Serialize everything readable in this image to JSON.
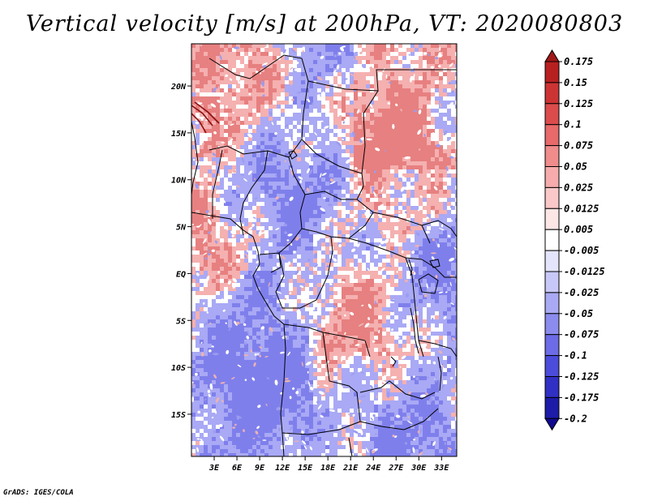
{
  "title": "Vertical velocity [m/s] at 200hPa, VT: 2020080803",
  "credit": "GrADS: IGES/COLA",
  "map": {
    "lat_labels": [
      "20N",
      "15N",
      "10N",
      "5N",
      "EQ",
      "5S",
      "10S",
      "15S"
    ],
    "lon_labels": [
      "3E",
      "6E",
      "9E",
      "12E",
      "15E",
      "18E",
      "21E",
      "24E",
      "27E",
      "30E",
      "33E"
    ],
    "lon_range": [
      0,
      35
    ],
    "lat_range": [
      -19.5,
      24.5
    ],
    "lat_ticks": [
      20,
      15,
      10,
      5,
      0,
      -5,
      -10,
      -15
    ],
    "lon_ticks": [
      3,
      6,
      9,
      12,
      15,
      18,
      21,
      24,
      27,
      30,
      33
    ]
  },
  "colorbar": {
    "levels": [
      "0.175",
      "0.15",
      "0.125",
      "0.1",
      "0.075",
      "0.05",
      "0.025",
      "0.0125",
      "0.005",
      "-0.005",
      "-0.0125",
      "-0.025",
      "-0.05",
      "-0.075",
      "-0.1",
      "-0.125",
      "-0.175",
      "-0.2"
    ],
    "colors": [
      "#a01818",
      "#b82020",
      "#cc3434",
      "#dc4c4c",
      "#e86a6a",
      "#f08c8c",
      "#f6acac",
      "#fac8c8",
      "#fde6e6",
      "#ffffff",
      "#e4e4fc",
      "#c8c8f8",
      "#aaaaf4",
      "#8c8cee",
      "#6c6ce6",
      "#4c4cdc",
      "#3030c4",
      "#1c1ca8",
      "#100a90"
    ]
  },
  "palette": {
    "field_blue": "#a9a9f5",
    "field_blue_dark": "#7f7fec",
    "field_red": "#f5b0b0",
    "field_red_dark": "#e78080",
    "field_white": "#ffffff"
  }
}
